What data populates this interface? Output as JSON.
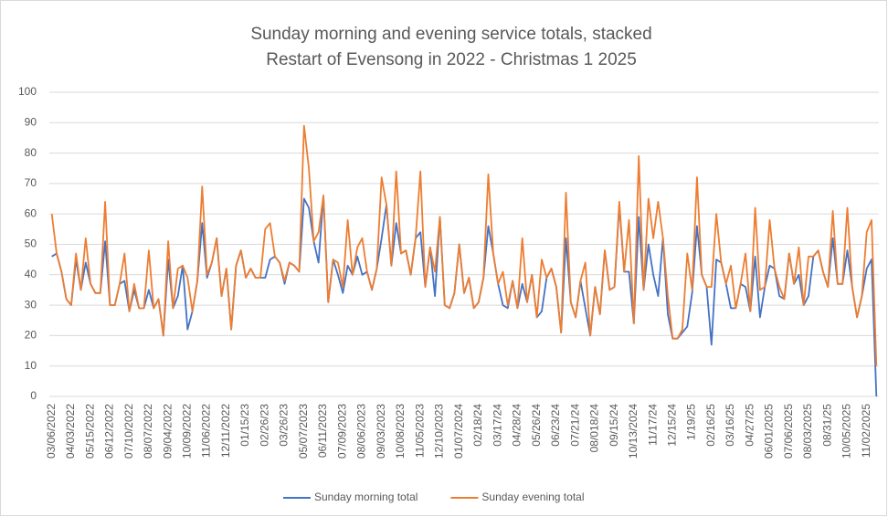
{
  "chart_data": {
    "type": "line",
    "title": "Sunday morning and evening service totals, stacked",
    "subtitle": "Restart of Evensong in 2022 - Christmas 1 2025",
    "stacked": true,
    "categories": [
      "03/06/2022",
      null,
      null,
      null,
      "04/03/2022",
      null,
      null,
      null,
      "05/15/2022",
      null,
      null,
      null,
      "06/12/2022",
      null,
      null,
      null,
      "07/10/2022",
      null,
      null,
      null,
      "08/07/2022",
      null,
      null,
      null,
      "09/04/2022",
      null,
      null,
      null,
      "10/09/2022",
      null,
      null,
      null,
      "11/06/2022",
      null,
      null,
      null,
      "12/11/2022",
      null,
      null,
      null,
      "01/15/23",
      null,
      null,
      null,
      "02/26/23",
      null,
      null,
      null,
      "03/26/23",
      null,
      null,
      null,
      "05/07/2023",
      null,
      null,
      null,
      "06/11/2023",
      null,
      null,
      null,
      "07/09/2023",
      null,
      null,
      null,
      "08/06/2023",
      null,
      null,
      null,
      "09/03/2023",
      null,
      null,
      null,
      "10/08/2023",
      null,
      null,
      null,
      "11/05/2023",
      null,
      null,
      null,
      "12/10/2023",
      null,
      null,
      null,
      "01/07/2024",
      null,
      null,
      null,
      "02/18/24",
      null,
      null,
      null,
      "03/17/24",
      null,
      null,
      null,
      "04/28/24",
      null,
      null,
      null,
      "05/26/24",
      null,
      null,
      null,
      "06/23/24",
      null,
      null,
      null,
      "07/21/24",
      null,
      null,
      null,
      "08/018/24",
      null,
      null,
      null,
      "09/15/24",
      null,
      null,
      null,
      "10/13/2024",
      null,
      null,
      null,
      "11/17/24",
      null,
      null,
      null,
      "12/15/24",
      null,
      null,
      null,
      "1/19/25",
      null,
      null,
      null,
      "02/16/25",
      null,
      null,
      null,
      "03/16/25",
      null,
      null,
      null,
      "04/27/25",
      null,
      null,
      null,
      "06/01/2025",
      null,
      null,
      null,
      "07/06/2025",
      null,
      null,
      null,
      "08/03/2025",
      null,
      null,
      null,
      "08/31/25",
      null,
      null,
      null,
      "10/05/2025",
      null,
      null,
      null,
      "11/02/2025",
      null,
      null
    ],
    "series": [
      {
        "name": "Sunday morning total",
        "color": "#4472c4",
        "values": [
          46,
          47,
          41,
          32,
          30,
          45,
          35,
          44,
          37,
          34,
          34,
          51,
          30,
          30,
          37,
          38,
          28,
          35,
          29,
          29,
          35,
          29,
          32,
          20,
          45,
          29,
          33,
          43,
          22,
          28,
          38,
          57,
          39,
          44,
          52,
          33,
          42,
          22,
          43,
          48,
          39,
          42,
          39,
          39,
          39,
          45,
          46,
          44,
          37,
          44,
          43,
          41,
          65,
          62,
          51,
          44,
          66,
          31,
          45,
          40,
          34,
          43,
          40,
          46,
          40,
          41,
          35,
          42,
          52,
          63,
          43,
          57,
          47,
          48,
          40,
          52,
          54,
          36,
          49,
          33,
          59,
          30,
          29,
          34,
          50,
          34,
          39,
          29,
          31,
          39,
          56,
          47,
          37,
          30,
          29,
          38,
          29,
          37,
          31,
          40,
          26,
          28,
          39,
          42,
          36,
          21,
          52,
          31,
          26,
          38,
          29,
          20,
          36,
          27,
          48,
          35,
          36,
          63,
          41,
          41,
          24,
          59,
          35,
          50,
          40,
          33,
          52,
          27,
          19,
          19,
          21,
          23,
          34,
          56,
          40,
          36,
          17,
          45,
          44,
          37,
          29,
          29,
          37,
          36,
          28,
          46,
          26,
          36,
          43,
          42,
          33,
          32,
          47,
          37,
          40,
          30,
          33,
          46,
          48,
          41,
          36,
          52,
          37,
          37,
          48,
          36,
          26,
          33,
          42,
          45,
          0
        ]
      },
      {
        "name": "Sunday evening total",
        "color": "#ed7d31",
        "values": [
          14,
          0,
          0,
          0,
          0,
          2,
          0,
          8,
          0,
          0,
          0,
          13,
          0,
          0,
          0,
          9,
          0,
          2,
          0,
          0,
          13,
          0,
          0,
          0,
          6,
          0,
          9,
          0,
          17,
          0,
          0,
          12,
          1,
          0,
          0,
          0,
          0,
          0,
          0,
          0,
          0,
          0,
          0,
          0,
          16,
          12,
          0,
          0,
          1,
          0,
          0,
          0,
          24,
          13,
          0,
          10,
          0,
          0,
          0,
          4,
          2,
          15,
          0,
          3,
          12,
          0,
          0,
          0,
          20,
          0,
          0,
          17,
          0,
          0,
          0,
          0,
          20,
          0,
          0,
          8,
          0,
          0,
          0,
          0,
          0,
          0,
          0,
          0,
          0,
          0,
          17,
          0,
          0,
          11,
          1,
          0,
          0,
          15,
          0,
          0,
          0,
          17,
          0,
          0,
          0,
          0,
          15,
          0,
          0,
          0,
          15,
          0,
          0,
          0,
          0,
          0,
          0,
          1,
          0,
          17,
          0,
          20,
          0,
          15,
          12,
          31,
          0,
          6,
          0,
          0,
          1,
          24,
          1,
          16,
          0,
          0,
          19,
          15,
          0,
          0,
          14,
          0,
          0,
          11,
          0,
          16,
          9,
          0,
          15,
          0,
          3,
          0,
          0,
          0,
          9,
          0,
          13,
          0,
          0,
          0,
          0,
          9,
          0,
          0,
          14,
          0,
          0,
          0,
          12,
          13,
          10
        ]
      }
    ],
    "ylim": [
      0,
      100
    ],
    "yticks": [
      0,
      10,
      20,
      30,
      40,
      50,
      60,
      70,
      80,
      90,
      100
    ],
    "grid": true,
    "legend": "bottom"
  }
}
